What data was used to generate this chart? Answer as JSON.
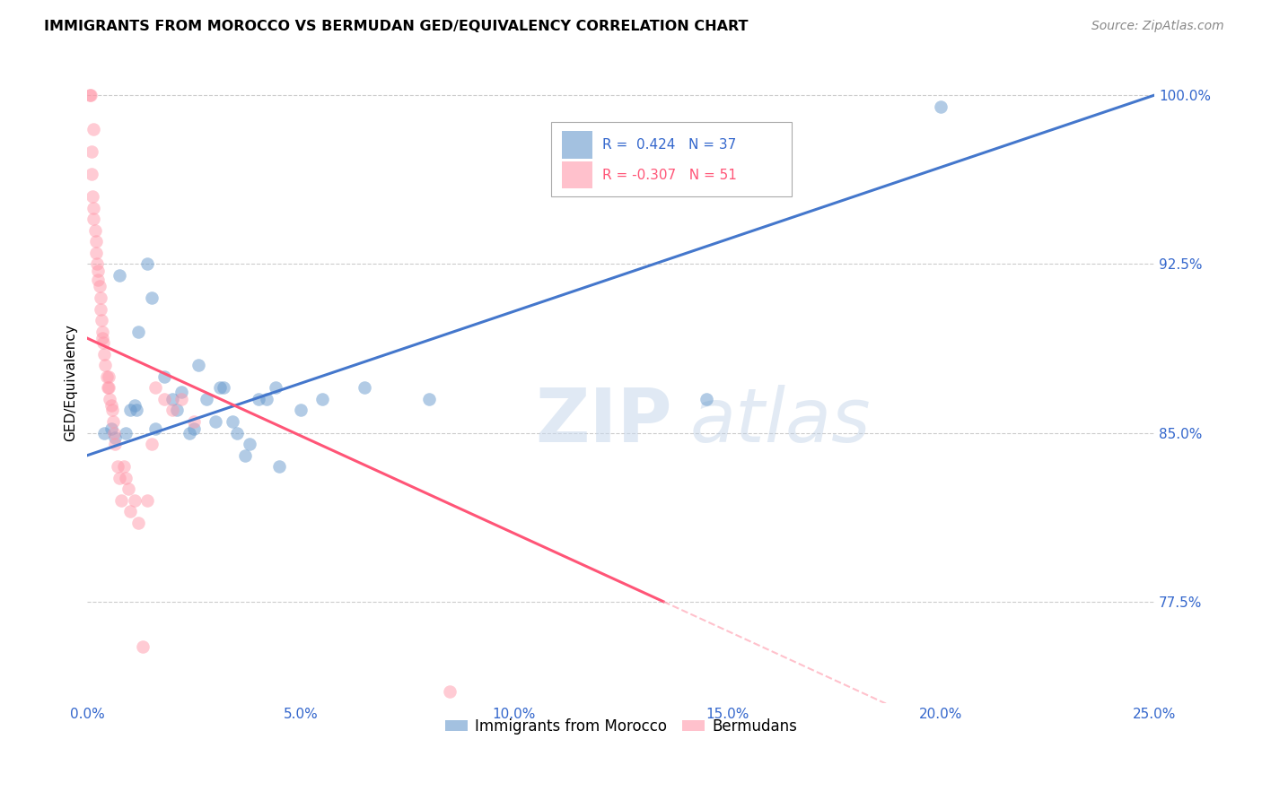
{
  "title": "IMMIGRANTS FROM MOROCCO VS BERMUDAN GED/EQUIVALENCY CORRELATION CHART",
  "source": "Source: ZipAtlas.com",
  "legend_blue_r": "R =  0.424",
  "legend_blue_n": "N = 37",
  "legend_pink_r": "R = -0.307",
  "legend_pink_n": "N = 51",
  "legend_label_blue": "Immigrants from Morocco",
  "legend_label_pink": "Bermudans",
  "blue_color": "#6699CC",
  "pink_color": "#FF99AA",
  "watermark_zip": "ZIP",
  "watermark_atlas": "atlas",
  "yticks": [
    100.0,
    92.5,
    85.0,
    77.5
  ],
  "xticks": [
    0.0,
    5.0,
    10.0,
    15.0,
    20.0,
    25.0
  ],
  "xlim": [
    0.0,
    25.0
  ],
  "ylim": [
    73.0,
    101.5
  ],
  "blue_line": [
    [
      0.0,
      84.0
    ],
    [
      25.0,
      100.0
    ]
  ],
  "pink_line_solid": [
    [
      0.0,
      89.2
    ],
    [
      13.5,
      77.5
    ]
  ],
  "pink_line_dash": [
    [
      13.5,
      77.5
    ],
    [
      25.0,
      67.5
    ]
  ],
  "blue_dots_x": [
    0.4,
    0.55,
    0.65,
    0.75,
    0.9,
    1.0,
    1.1,
    1.15,
    1.2,
    1.4,
    1.5,
    1.6,
    1.8,
    2.0,
    2.1,
    2.2,
    2.4,
    2.5,
    2.6,
    2.8,
    3.0,
    3.1,
    3.2,
    3.4,
    3.5,
    3.7,
    3.8,
    4.0,
    4.2,
    4.4,
    4.5,
    5.0,
    5.5,
    6.5,
    8.0,
    14.5,
    20.0
  ],
  "blue_dots_y": [
    85.0,
    85.2,
    84.8,
    92.0,
    85.0,
    86.0,
    86.2,
    86.0,
    89.5,
    92.5,
    91.0,
    85.2,
    87.5,
    86.5,
    86.0,
    86.8,
    85.0,
    85.2,
    88.0,
    86.5,
    85.5,
    87.0,
    87.0,
    85.5,
    85.0,
    84.0,
    84.5,
    86.5,
    86.5,
    87.0,
    83.5,
    86.0,
    86.5,
    87.0,
    86.5,
    86.5,
    99.5
  ],
  "pink_dots_x": [
    0.05,
    0.1,
    0.1,
    0.12,
    0.15,
    0.15,
    0.18,
    0.2,
    0.2,
    0.22,
    0.25,
    0.25,
    0.28,
    0.3,
    0.3,
    0.32,
    0.35,
    0.35,
    0.38,
    0.4,
    0.42,
    0.45,
    0.48,
    0.5,
    0.5,
    0.52,
    0.55,
    0.58,
    0.6,
    0.62,
    0.65,
    0.7,
    0.75,
    0.8,
    0.85,
    0.9,
    0.95,
    1.0,
    1.1,
    1.2,
    1.3,
    1.4,
    1.5,
    1.6,
    1.8,
    2.0,
    2.2,
    2.5,
    0.15,
    0.08,
    8.5
  ],
  "pink_dots_y": [
    100.0,
    97.5,
    96.5,
    95.5,
    95.0,
    94.5,
    94.0,
    93.5,
    93.0,
    92.5,
    92.2,
    91.8,
    91.5,
    91.0,
    90.5,
    90.0,
    89.5,
    89.2,
    89.0,
    88.5,
    88.0,
    87.5,
    87.0,
    87.5,
    87.0,
    86.5,
    86.2,
    86.0,
    85.5,
    85.0,
    84.5,
    83.5,
    83.0,
    82.0,
    83.5,
    83.0,
    82.5,
    81.5,
    82.0,
    81.0,
    75.5,
    82.0,
    84.5,
    87.0,
    86.5,
    86.0,
    86.5,
    85.5,
    98.5,
    100.0,
    73.5
  ]
}
